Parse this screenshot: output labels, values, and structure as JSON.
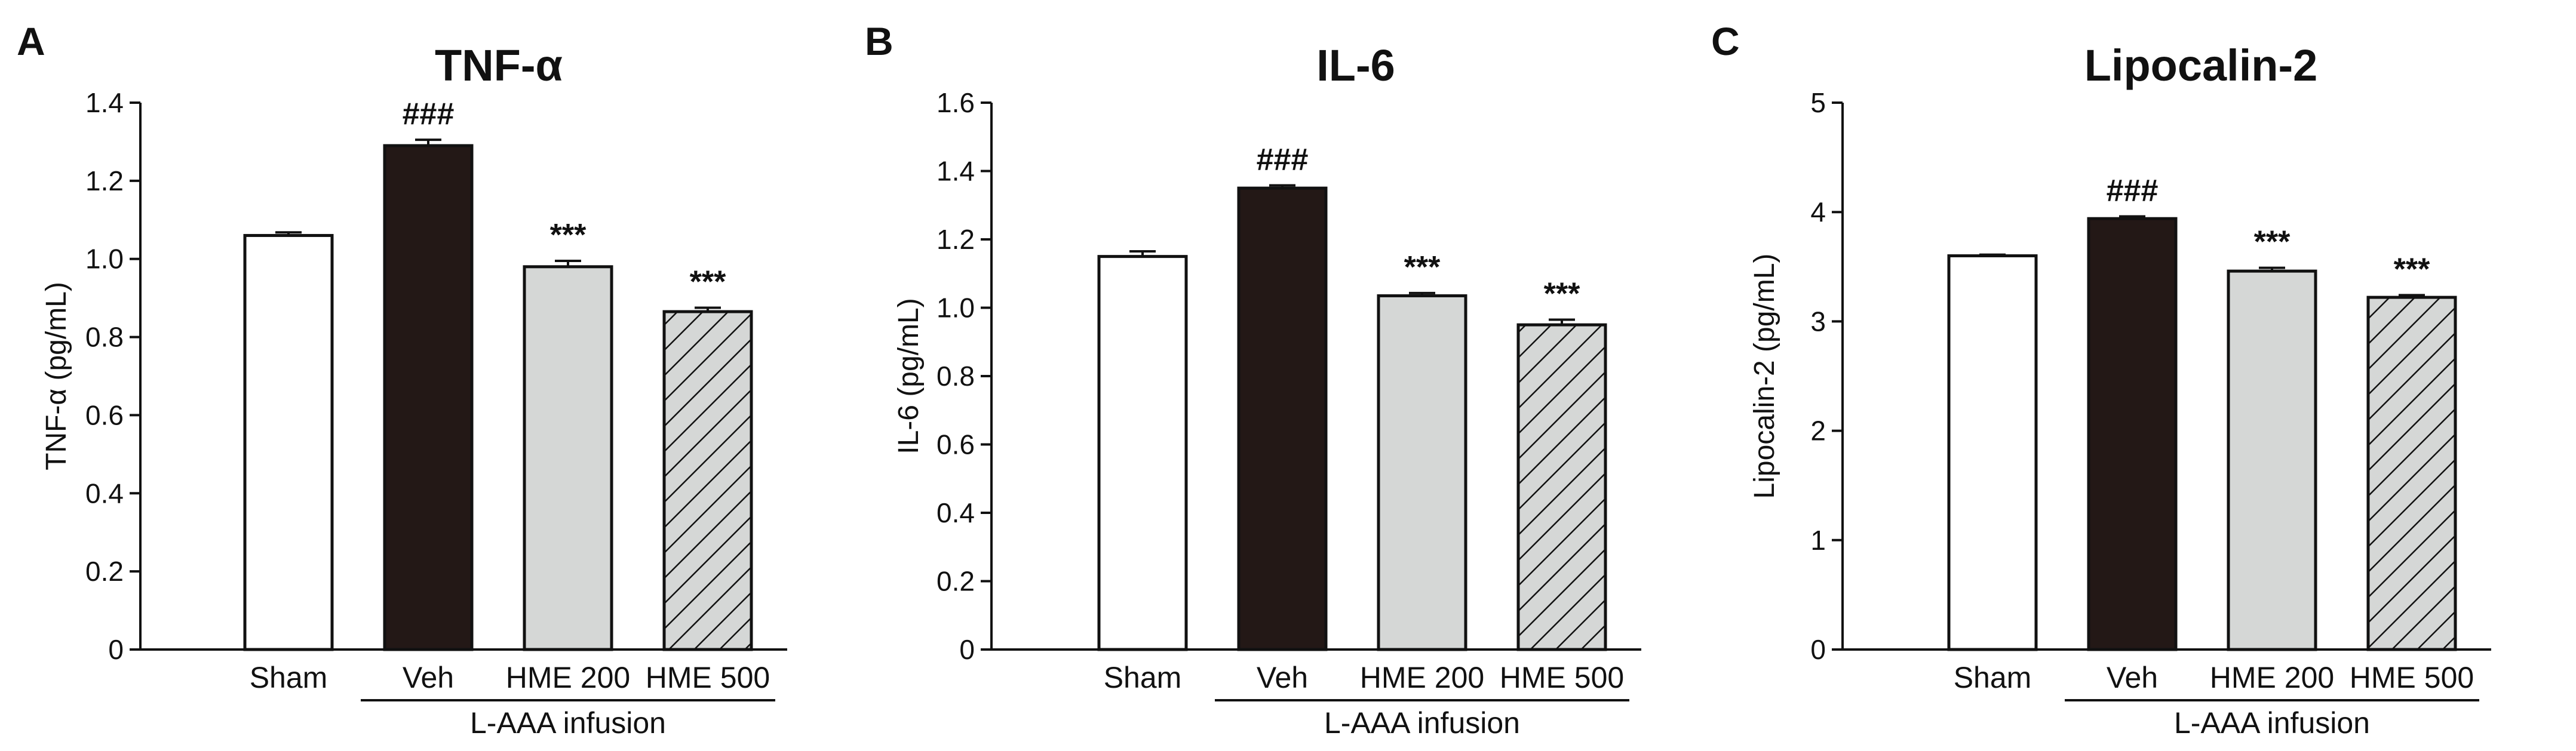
{
  "chart_data": [
    {
      "type": "bar",
      "panel": "A",
      "title": "TNF-α",
      "xlabel": "",
      "ylabel": "TNF-α (pg/mL)",
      "ylim": [
        0,
        1.4
      ],
      "yticks": [
        "0",
        "0.2",
        "0.4",
        "0.6",
        "0.8",
        "1.0",
        "1.2",
        "1.4"
      ],
      "categories": [
        "Sham",
        "Veh",
        "HME 200",
        "HME 500"
      ],
      "values": [
        1.06,
        1.29,
        0.98,
        0.865
      ],
      "errors": [
        0.008,
        0.015,
        0.015,
        0.01
      ],
      "significance": [
        "",
        "###",
        "***",
        "***"
      ],
      "group_label": "L-AAA infusion"
    },
    {
      "type": "bar",
      "panel": "B",
      "title": "IL-6",
      "xlabel": "",
      "ylabel": "IL-6 (pg/mL)",
      "ylim": [
        0,
        1.6
      ],
      "yticks": [
        "0",
        "0.2",
        "0.4",
        "0.6",
        "0.8",
        "1.0",
        "1.2",
        "1.4",
        "1.6"
      ],
      "categories": [
        "Sham",
        "Veh",
        "HME 200",
        "HME 500"
      ],
      "values": [
        1.15,
        1.35,
        1.035,
        0.95
      ],
      "errors": [
        0.015,
        0.008,
        0.008,
        0.015
      ],
      "significance": [
        "",
        "###",
        "***",
        "***"
      ],
      "group_label": "L-AAA infusion"
    },
    {
      "type": "bar",
      "panel": "C",
      "title": "Lipocalin-2",
      "xlabel": "",
      "ylabel": "Lipocalin-2 (pg/mL)",
      "ylim": [
        0,
        5
      ],
      "yticks": [
        "0",
        "1",
        "2",
        "3",
        "4",
        "5"
      ],
      "categories": [
        "Sham",
        "Veh",
        "HME 200",
        "HME 500"
      ],
      "values": [
        3.6,
        3.94,
        3.46,
        3.22
      ],
      "errors": [
        0.01,
        0.02,
        0.03,
        0.02
      ],
      "significance": [
        "",
        "###",
        "***",
        "***"
      ],
      "group_label": "L-AAA infusion"
    }
  ],
  "colors": {
    "sham": "#ffffff",
    "veh": "#231816",
    "hme200": "#d5d7d6",
    "hme500": "#d5d7d6",
    "stroke": "#111111"
  }
}
